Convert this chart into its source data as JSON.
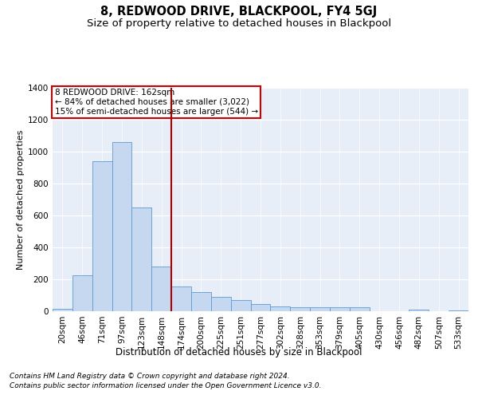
{
  "title": "8, REDWOOD DRIVE, BLACKPOOL, FY4 5GJ",
  "subtitle": "Size of property relative to detached houses in Blackpool",
  "xlabel": "Distribution of detached houses by size in Blackpool",
  "ylabel": "Number of detached properties",
  "categories": [
    "20sqm",
    "46sqm",
    "71sqm",
    "97sqm",
    "123sqm",
    "148sqm",
    "174sqm",
    "200sqm",
    "225sqm",
    "251sqm",
    "277sqm",
    "302sqm",
    "328sqm",
    "353sqm",
    "379sqm",
    "405sqm",
    "430sqm",
    "456sqm",
    "482sqm",
    "507sqm",
    "533sqm"
  ],
  "values": [
    15,
    225,
    940,
    1060,
    650,
    280,
    155,
    120,
    90,
    70,
    45,
    30,
    25,
    25,
    25,
    25,
    0,
    0,
    10,
    0,
    5
  ],
  "bar_color": "#c5d8f0",
  "bar_edge_color": "#5b9bd5",
  "background_color": "#e8eef8",
  "vline_color": "#aa0000",
  "annotation_line1": "8 REDWOOD DRIVE: 162sqm",
  "annotation_line2": "← 84% of detached houses are smaller (3,022)",
  "annotation_line3": "15% of semi-detached houses are larger (544) →",
  "footer_line1": "Contains HM Land Registry data © Crown copyright and database right 2024.",
  "footer_line2": "Contains public sector information licensed under the Open Government Licence v3.0.",
  "ylim": [
    0,
    1400
  ],
  "yticks": [
    0,
    200,
    400,
    600,
    800,
    1000,
    1200,
    1400
  ],
  "title_fontsize": 10.5,
  "subtitle_fontsize": 9.5,
  "xlabel_fontsize": 8.5,
  "ylabel_fontsize": 8,
  "tick_fontsize": 7.5,
  "annotation_fontsize": 7.5,
  "footer_fontsize": 6.5
}
